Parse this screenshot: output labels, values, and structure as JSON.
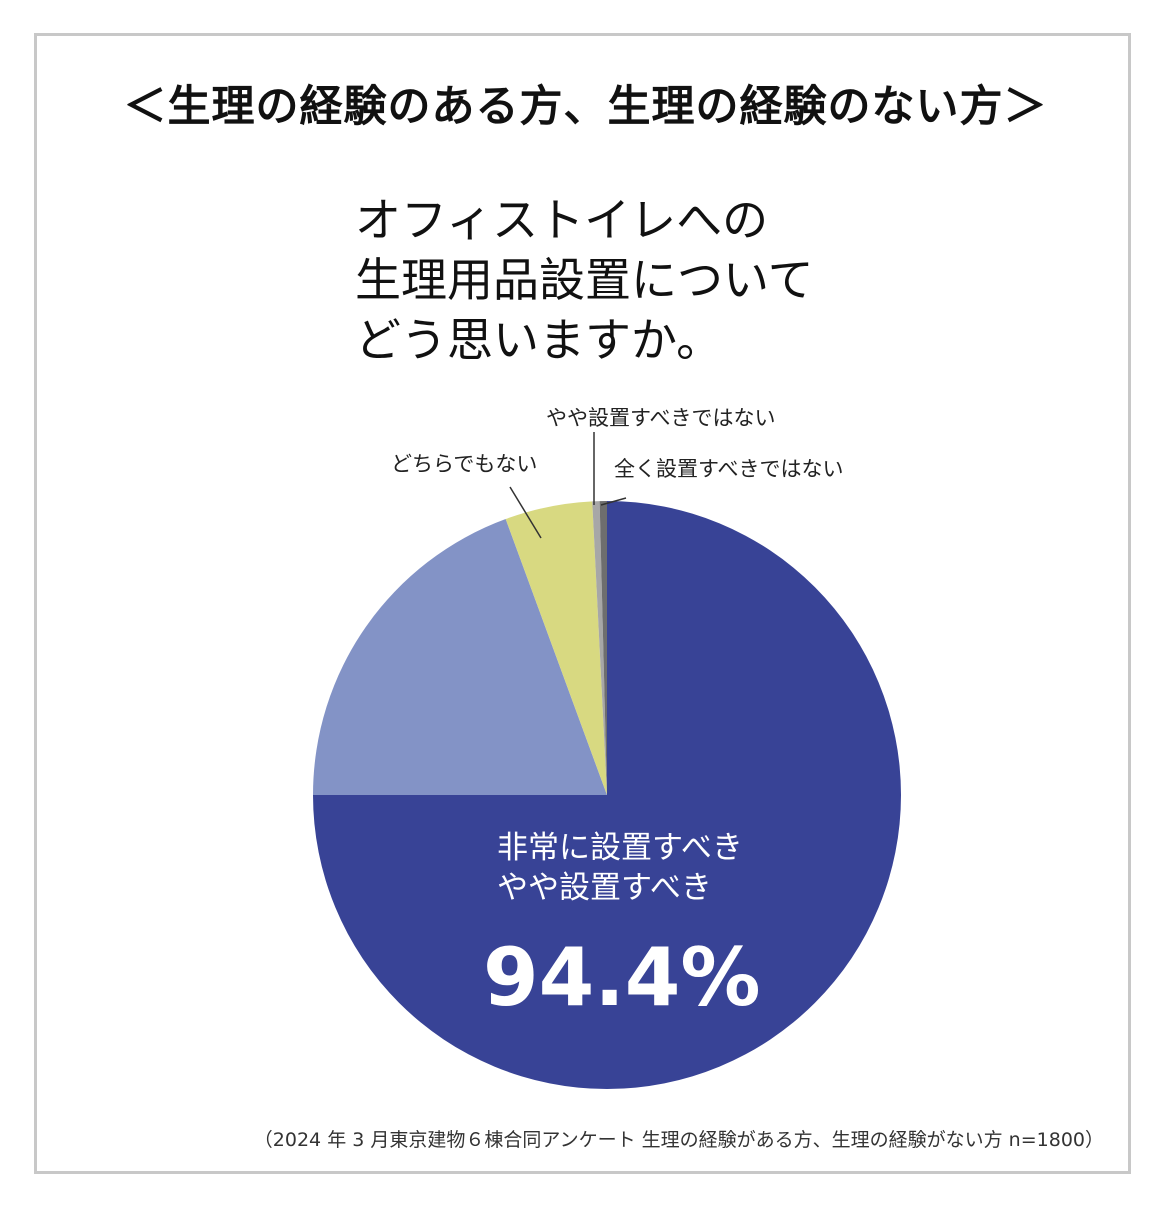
{
  "header": {
    "title": "＜生理の経験のある方、生理の経験のない方＞"
  },
  "question": {
    "lines": [
      "オフィストイレへの",
      "生理用品設置について",
      "どう思いますか。"
    ]
  },
  "chart_data": {
    "type": "pie",
    "start": "12 o'clock",
    "direction": "clockwise",
    "slices": [
      {
        "label": "非常に設置すべき",
        "value": 75,
        "color": "#384396"
      },
      {
        "label": "やや設置すべき",
        "value": 19.4,
        "color": "#8393c6"
      },
      {
        "label": "どちらでもない",
        "value": 4.8,
        "color": "#d8d981"
      },
      {
        "label": "やや設置すべきではない",
        "value": 0.4,
        "color": "#a7a7a7"
      },
      {
        "label": "全く設置すべきではない",
        "value": 0.4,
        "color": "#6e6e6e"
      }
    ],
    "annotation": {
      "lines": [
        "非常に設置すべき",
        "やや設置すべき"
      ],
      "value": "94.4%"
    }
  },
  "footer": {
    "source": "（2024 年 3 月東京建物６棟合同アンケート 生理の経験がある方、生理の経験がない方 n=1800）"
  }
}
